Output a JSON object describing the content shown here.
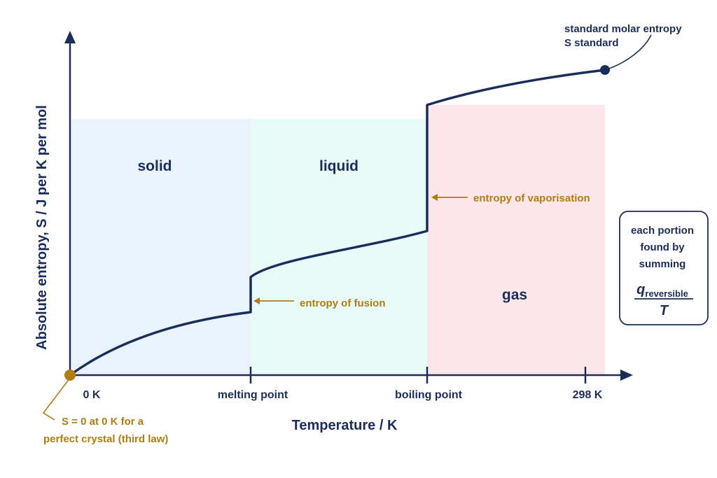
{
  "colors": {
    "navy": "#1b2d5b",
    "gold": "#b07d12",
    "solid_region": "#eaf2fd",
    "liquid_region": "#e8fbf9",
    "gas_region": "#fde6ea"
  },
  "phases": {
    "solid": "solid",
    "liquid": "liquid",
    "gas": "gas"
  },
  "axes": {
    "x_title": "Temperature / K",
    "y_title": "Absolute entropy, S / J per K per mol",
    "ticks": {
      "zero": "0 K",
      "melting": "melting point",
      "boiling": "boiling point",
      "standard": "298 K"
    }
  },
  "annotations": {
    "fusion": "entropy of fusion",
    "vaporisation": "entropy of vaporisation",
    "standard_line1": "standard molar entropy",
    "standard_line2": "S standard",
    "third_law_line1": "S = 0 at 0 K for a",
    "third_law_line2": "perfect crystal (third law)"
  },
  "info_box": {
    "line1": "each portion",
    "line2": "found by",
    "line3": "summing",
    "numerator": "q",
    "numerator_sub": "reversible",
    "denominator": "T"
  }
}
